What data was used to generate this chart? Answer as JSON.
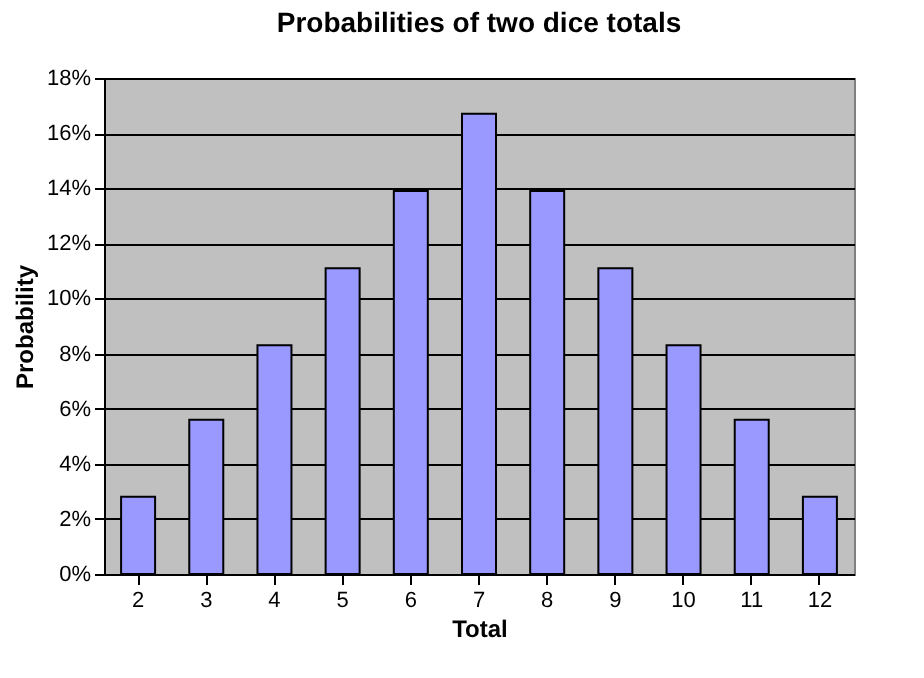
{
  "chart_data": {
    "type": "bar",
    "title": "Probabilities of two dice totals",
    "xlabel": "Total",
    "ylabel": "Probability",
    "categories": [
      "2",
      "3",
      "4",
      "5",
      "6",
      "7",
      "8",
      "9",
      "10",
      "11",
      "12"
    ],
    "values": [
      2.8,
      5.6,
      8.3,
      11.1,
      13.9,
      16.7,
      13.9,
      11.1,
      8.3,
      5.6,
      2.8
    ],
    "color": "#9999ff",
    "ylim": [
      0,
      18
    ],
    "yticks": [
      {
        "value": 0,
        "label": "0%"
      },
      {
        "value": 2,
        "label": "2%"
      },
      {
        "value": 4,
        "label": "4%"
      },
      {
        "value": 6,
        "label": "6%"
      },
      {
        "value": 8,
        "label": "8%"
      },
      {
        "value": 10,
        "label": "10%"
      },
      {
        "value": 12,
        "label": "12%"
      },
      {
        "value": 14,
        "label": "14%"
      },
      {
        "value": 16,
        "label": "16%"
      },
      {
        "value": 18,
        "label": "18%"
      }
    ],
    "grid": "y"
  }
}
